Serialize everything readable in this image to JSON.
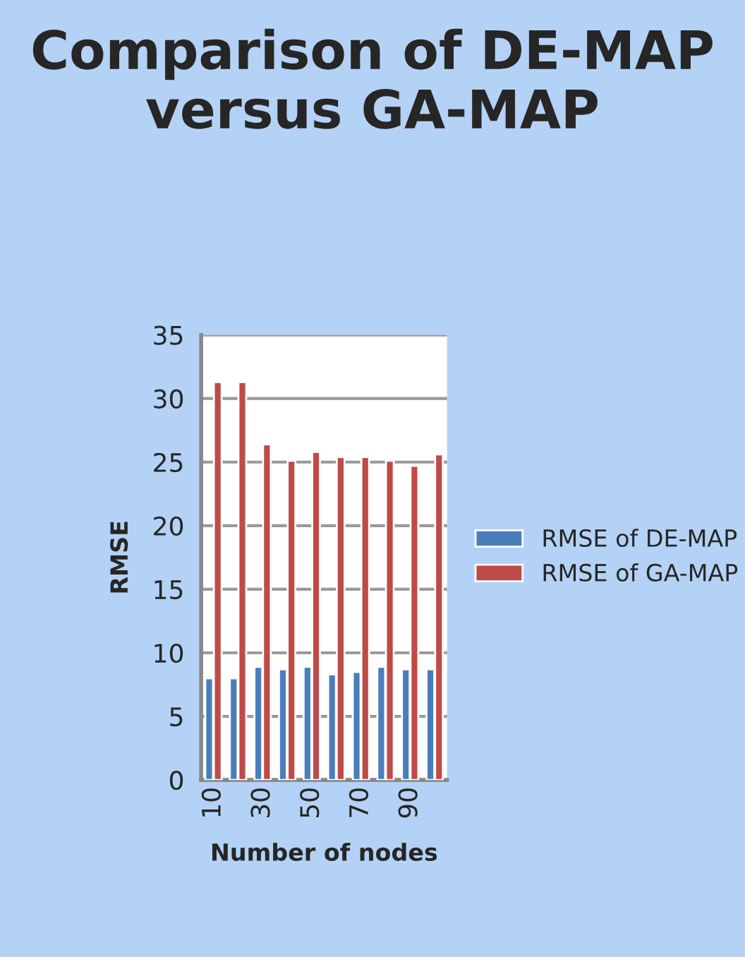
{
  "chart_data": {
    "type": "bar",
    "title": "Comparison of DE-MAP versus GA-MAP",
    "xlabel": "Number of nodes",
    "ylabel": "RMSE",
    "categories": [
      "10",
      null,
      "30",
      null,
      "50",
      null,
      "70",
      null,
      "90",
      null
    ],
    "series": [
      {
        "name": "RMSE of DE-MAP",
        "color": "#4a7ebb",
        "values": [
          8.0,
          8.0,
          8.9,
          8.7,
          8.9,
          8.3,
          8.5,
          8.9,
          8.7,
          8.7
        ]
      },
      {
        "name": "RMSE of GA-MAP",
        "color": "#be4b48",
        "values": [
          31.3,
          31.3,
          26.4,
          25.1,
          25.8,
          25.4,
          25.4,
          25.1,
          24.7,
          25.6
        ]
      }
    ],
    "ylim": [
      0,
      35
    ],
    "yticks": [
      0,
      5,
      10,
      15,
      20,
      25,
      30,
      35
    ],
    "grid": "y",
    "legend": "right"
  }
}
